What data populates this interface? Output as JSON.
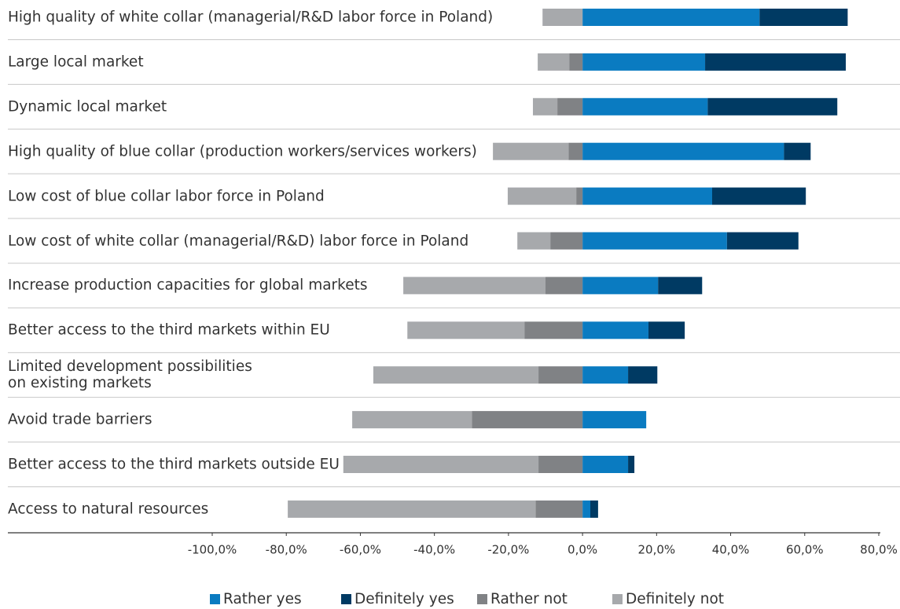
{
  "chart_data": {
    "type": "diverging_bar",
    "categories": [
      "High quality of white collar (managerial/R&D labor force in Poland)",
      "Large local market",
      "Dynamic local market",
      "High quality of blue collar (production workers/services workers)",
      "Low cost of blue collar labor force in Poland",
      "Low cost of white collar (managerial/R&D) labor force in Poland",
      "Increase production capacities for global markets",
      "Better access to the third markets within EU",
      "Limited development possibilities\non existing markets",
      "Avoid trade barriers",
      "Better access to the third markets outside EU",
      "Access to natural resources"
    ],
    "series": [
      {
        "name": "Rather yes",
        "color": "#0a7bc1",
        "values": [
          47.8,
          33.1,
          33.8,
          54.4,
          35.0,
          39.0,
          20.4,
          17.8,
          12.3,
          17.2,
          12.3,
          2.1
        ]
      },
      {
        "name": "Definitely yes",
        "color": "#003a63",
        "values": [
          23.8,
          38.0,
          35.0,
          7.2,
          25.3,
          19.3,
          11.9,
          9.8,
          7.9,
          0,
          1.7,
          2.1
        ]
      },
      {
        "name": "Rather not",
        "color": "#808285",
        "values": [
          0,
          -3.6,
          -6.8,
          -3.8,
          -1.7,
          -8.7,
          -10.0,
          -15.7,
          -11.9,
          -29.9,
          -11.9,
          -12.7
        ]
      },
      {
        "name": "Definitely not",
        "color": "#a7a9ac",
        "values": [
          -10.8,
          -8.5,
          -6.6,
          -20.4,
          -18.5,
          -8.9,
          -38.4,
          -31.6,
          -44.6,
          -32.3,
          -52.7,
          -66.9
        ]
      }
    ],
    "xlim": [
      -100,
      80
    ],
    "xticks": [
      {
        "value": -100,
        "label": "-100,0%"
      },
      {
        "value": -80,
        "label": "-80,0%"
      },
      {
        "value": -60,
        "label": "-60,0%"
      },
      {
        "value": -40,
        "label": "-40,0%"
      },
      {
        "value": -20,
        "label": "-20,0%"
      },
      {
        "value": 0,
        "label": "0,0%"
      },
      {
        "value": 20,
        "label": "20,0%"
      },
      {
        "value": 40,
        "label": "40,0%"
      },
      {
        "value": 60,
        "label": "60,0%"
      },
      {
        "value": 80,
        "label": "80,0%"
      }
    ],
    "legend": "bottom"
  }
}
